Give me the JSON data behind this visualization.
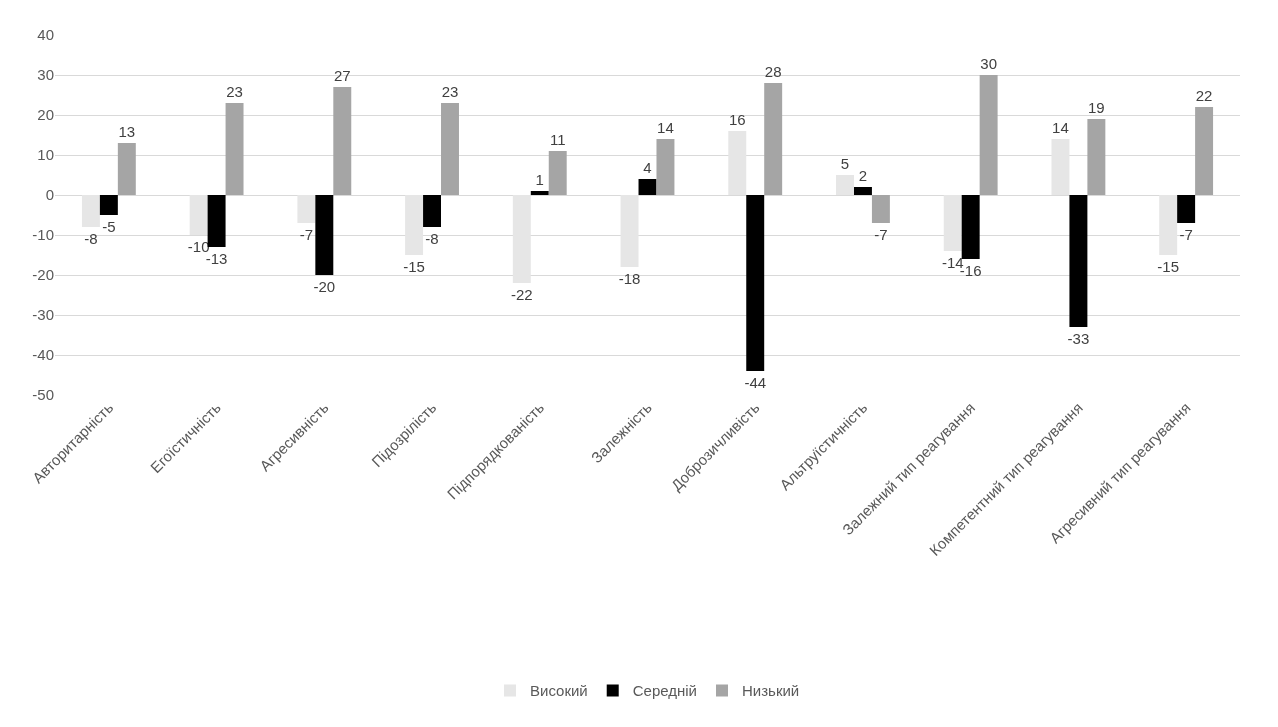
{
  "chart_data": {
    "type": "bar",
    "categories": [
      "Авторитарність",
      "Егоїстичність",
      "Агресивність",
      "Підозрілість",
      "Підпорядкованість",
      "Залежність",
      "Доброзичливість",
      "Альтруїстичність",
      "Залежний тип реагування",
      "Компетентний тип реагування",
      "Агресивний тип реагування"
    ],
    "series": [
      {
        "name": "Високий",
        "color": "#e6e6e6",
        "values": [
          -8,
          -10,
          -7,
          -15,
          -22,
          -18,
          16,
          5,
          -14,
          14,
          -15
        ]
      },
      {
        "name": "Середній",
        "color": "#000000",
        "values": [
          -5,
          -13,
          -20,
          -8,
          1,
          4,
          -44,
          2,
          -16,
          -33,
          -7
        ]
      },
      {
        "name": "Низький",
        "color": "#a5a5a5",
        "values": [
          13,
          23,
          27,
          23,
          11,
          14,
          28,
          -7,
          30,
          19,
          22
        ]
      }
    ],
    "ylim": [
      -50,
      40
    ],
    "yticks": [
      -50,
      -40,
      -30,
      -20,
      -10,
      0,
      10,
      20,
      30,
      40
    ],
    "grid": "y",
    "legend": "bottom",
    "data_labels": true
  }
}
